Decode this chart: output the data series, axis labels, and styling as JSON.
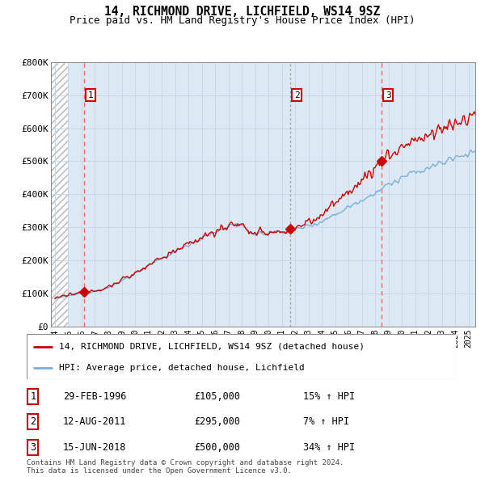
{
  "title": "14, RICHMOND DRIVE, LICHFIELD, WS14 9SZ",
  "subtitle": "Price paid vs. HM Land Registry's House Price Index (HPI)",
  "ylim": [
    0,
    800000
  ],
  "yticks": [
    0,
    100000,
    200000,
    300000,
    400000,
    500000,
    600000,
    700000,
    800000
  ],
  "ytick_labels": [
    "£0",
    "£100K",
    "£200K",
    "£300K",
    "£400K",
    "£500K",
    "£600K",
    "£700K",
    "£800K"
  ],
  "xlim_start": 1993.7,
  "xlim_end": 2025.5,
  "hatch_end": 1995.0,
  "sales": [
    {
      "year": 1996.16,
      "price": 105000,
      "label": "1",
      "line_style": "red_dashed"
    },
    {
      "year": 2011.62,
      "price": 295000,
      "label": "2",
      "line_style": "grey_dotted"
    },
    {
      "year": 2018.46,
      "price": 500000,
      "label": "3",
      "line_style": "red_dashed"
    }
  ],
  "sale_color": "#cc0000",
  "hpi_color": "#7aafda",
  "background_color": "#dce9f5",
  "grid_color": "#c5d5e8",
  "dashed_line_color": "#ff5555",
  "dotted_line_color": "#999999",
  "legend_line1": "14, RICHMOND DRIVE, LICHFIELD, WS14 9SZ (detached house)",
  "legend_line2": "HPI: Average price, detached house, Lichfield",
  "table_rows": [
    {
      "num": "1",
      "date": "29-FEB-1996",
      "price": "£105,000",
      "hpi": "15% ↑ HPI"
    },
    {
      "num": "2",
      "date": "12-AUG-2011",
      "price": "£295,000",
      "hpi": "7% ↑ HPI"
    },
    {
      "num": "3",
      "date": "15-JUN-2018",
      "price": "£500,000",
      "hpi": "34% ↑ HPI"
    }
  ],
  "footnote": "Contains HM Land Registry data © Crown copyright and database right 2024.\nThis data is licensed under the Open Government Licence v3.0.",
  "title_fontsize": 10.5,
  "subtitle_fontsize": 9,
  "axis_fontsize": 8,
  "legend_fontsize": 8,
  "table_fontsize": 8.5
}
